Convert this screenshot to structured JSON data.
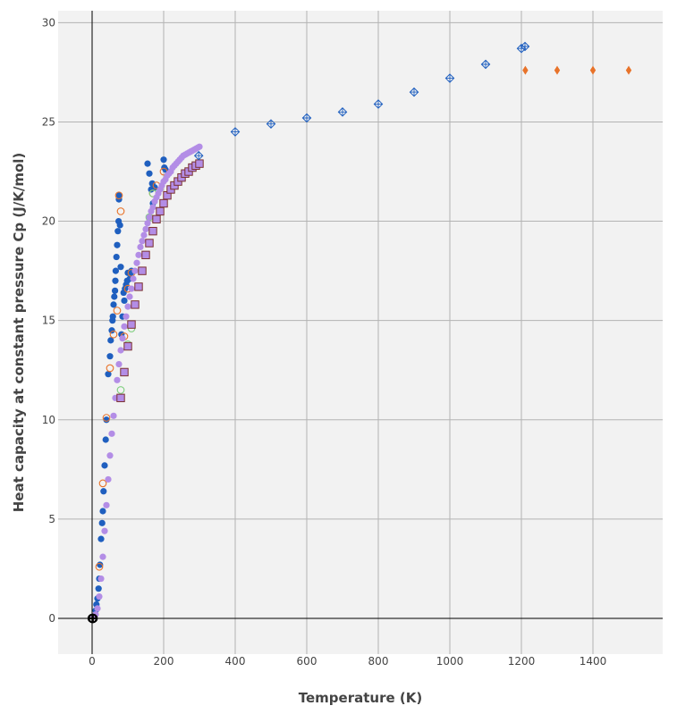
{
  "chart_data": {
    "type": "scatter",
    "title": "",
    "xlabel": "Temperature (K)",
    "ylabel": "Heat capacity at constant pressure Cp (J/K/mol)",
    "xlim": [
      -95,
      1595
    ],
    "ylim": [
      -1.8,
      30.6
    ],
    "xticks": [
      0,
      200,
      400,
      600,
      800,
      1000,
      1200,
      1400
    ],
    "yticks": [
      0,
      5,
      10,
      15,
      20,
      25,
      30
    ],
    "grid": true,
    "legend": "none",
    "colors": {
      "plot_bg": "#f2f2f2",
      "grid": "#b3b3b3",
      "zero_line": "#000000",
      "blue": "#1f5fbf",
      "orange": "#e8732a",
      "green": "#7fcf7f",
      "purple": "#b38de6",
      "square_edge": "#7a3030",
      "diamond_edge": "#1f5fbf"
    },
    "series": [
      {
        "marker": "circle",
        "color": "#1f5fbf",
        "x": [
          10,
          12,
          15,
          18,
          20,
          22,
          25,
          28,
          30,
          32,
          35,
          38,
          40,
          45,
          50,
          52,
          55,
          57,
          58,
          60,
          62,
          64,
          65,
          66,
          68,
          70,
          72,
          74,
          75,
          76,
          78,
          80,
          82,
          85,
          88,
          90,
          92,
          95,
          98,
          100,
          105,
          108,
          110,
          155,
          160,
          165,
          168,
          170,
          175,
          200,
          202,
          205
        ],
        "y": [
          0.4,
          0.7,
          1.0,
          1.5,
          2.0,
          2.7,
          4.0,
          4.8,
          5.4,
          6.4,
          7.7,
          9.0,
          10.0,
          12.3,
          13.2,
          14.0,
          14.5,
          15.0,
          15.2,
          15.8,
          16.2,
          16.5,
          17.0,
          17.5,
          18.2,
          18.8,
          19.5,
          20.0,
          21.1,
          21.3,
          19.8,
          17.7,
          14.3,
          15.2,
          16.4,
          16.0,
          16.6,
          16.8,
          17.0,
          17.4,
          17.1,
          17.4,
          17.5,
          22.9,
          22.4,
          21.6,
          21.9,
          20.9,
          21.7,
          23.1,
          22.7,
          22.6
        ]
      },
      {
        "marker": "circle-open",
        "color": "#e8732a",
        "x": [
          20,
          30,
          40,
          50,
          60,
          70,
          75,
          80,
          90,
          100,
          110,
          170,
          180,
          200
        ],
        "y": [
          2.6,
          6.8,
          10.1,
          12.6,
          14.3,
          15.5,
          21.3,
          20.5,
          14.2,
          16.6,
          17.4,
          21.4,
          21.8,
          22.5
        ]
      },
      {
        "marker": "circle-open",
        "color": "#7fcf7f",
        "x": [
          80,
          100,
          110,
          160,
          170
        ],
        "y": [
          11.5,
          13.8,
          14.6,
          20.2,
          21.4
        ]
      },
      {
        "marker": "circle",
        "color": "#b38de6",
        "x": [
          5,
          10,
          15,
          20,
          25,
          30,
          35,
          40,
          45,
          50,
          55,
          60,
          65,
          70,
          75,
          80,
          85,
          90,
          95,
          100,
          105,
          110,
          115,
          120,
          125,
          130,
          135,
          140,
          145,
          150,
          155,
          160,
          165,
          170,
          175,
          180,
          185,
          190,
          195,
          200,
          205,
          210,
          215,
          220,
          225,
          230,
          235,
          240,
          245,
          250,
          255,
          260,
          265,
          270,
          275,
          280,
          285,
          290,
          295,
          300
        ],
        "y": [
          0.1,
          0.2,
          0.5,
          1.1,
          2.0,
          3.1,
          4.4,
          5.7,
          7.0,
          8.2,
          9.3,
          10.2,
          11.1,
          12.0,
          12.8,
          13.5,
          14.1,
          14.7,
          15.2,
          15.7,
          16.2,
          16.6,
          17.1,
          17.5,
          17.9,
          18.3,
          18.7,
          19.0,
          19.3,
          19.6,
          19.9,
          20.2,
          20.5,
          20.7,
          21.0,
          21.2,
          21.4,
          21.6,
          21.8,
          22.0,
          22.1,
          22.3,
          22.4,
          22.5,
          22.7,
          22.8,
          22.9,
          23.0,
          23.1,
          23.2,
          23.3,
          23.35,
          23.4,
          23.45,
          23.5,
          23.55,
          23.6,
          23.65,
          23.7,
          23.75
        ]
      },
      {
        "marker": "square",
        "color": "#b38de6",
        "x": [
          80,
          90,
          100,
          110,
          120,
          130,
          140,
          150,
          160,
          170,
          180,
          190,
          200,
          210,
          220,
          230,
          240,
          250,
          260,
          270,
          280,
          290,
          300
        ],
        "y": [
          11.1,
          12.4,
          13.7,
          14.8,
          15.8,
          16.7,
          17.5,
          18.3,
          18.9,
          19.5,
          20.1,
          20.5,
          20.9,
          21.3,
          21.6,
          21.8,
          22.0,
          22.2,
          22.4,
          22.5,
          22.7,
          22.8,
          22.9
        ]
      },
      {
        "marker": "diamond-cross",
        "color": "#1f5fbf",
        "x": [
          298,
          400,
          500,
          600,
          700,
          800,
          900,
          1000,
          1100,
          1200,
          1210
        ],
        "y": [
          23.3,
          24.5,
          24.9,
          25.2,
          25.5,
          25.9,
          26.5,
          27.2,
          27.9,
          28.7,
          28.8
        ]
      },
      {
        "marker": "diamond",
        "color": "#e8732a",
        "x": [
          1211,
          1300,
          1400,
          1500
        ],
        "y": [
          27.6,
          27.6,
          27.6,
          27.6
        ]
      },
      {
        "marker": "circle-cross",
        "color": "#000000",
        "x": [
          0,
          1,
          2,
          3
        ],
        "y": [
          0,
          0,
          0,
          0
        ]
      }
    ]
  }
}
